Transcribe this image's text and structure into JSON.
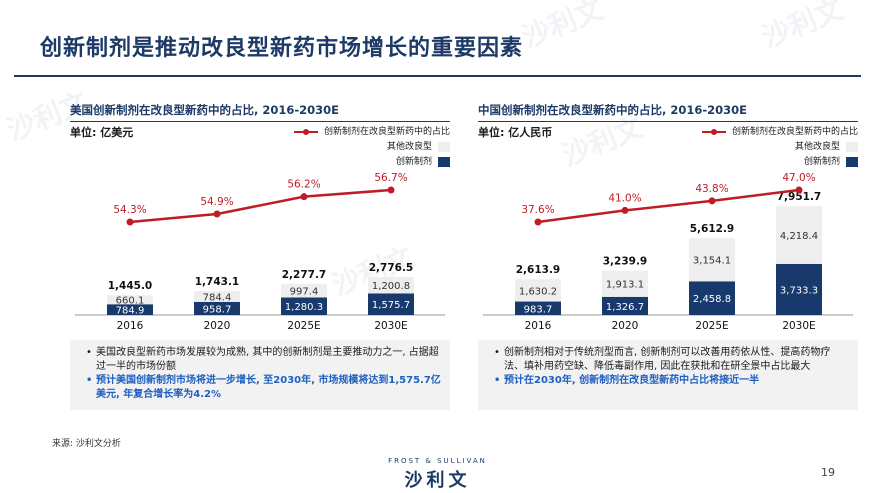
{
  "title": "创新制剂是推动改良型新药市场增长的重要因素",
  "legend": {
    "line": "创新制剂在改良型新药中的占比",
    "other": "其他改良型",
    "innovative": "创新制剂"
  },
  "colors": {
    "navy": "#17396b",
    "light": "#eeeeee",
    "line": "#c01c28",
    "accent_text": "#1f5fbf"
  },
  "left": {
    "heading": "美国创新制剂在改良型新药中的占比, 2016-2030E",
    "unit": "单位: 亿美元",
    "notes": [
      {
        "text": "美国改良型新药市场发展较为成熟, 其中的创新制剂是主要推动力之一, 占据超过一半的市场份额",
        "highlight": false
      },
      {
        "text": "预计美国创新制剂市场将进一步增长, 至2030年, 市场规模将达到1,575.7亿美元, 年复合增长率为4.2%",
        "highlight": true
      }
    ]
  },
  "right": {
    "heading": "中国创新制剂在改良型新药中的占比, 2016-2030E",
    "unit": "单位: 亿人民币",
    "notes": [
      {
        "text": "创新制剂相对于传统剂型而言, 创新制剂可以改善用药依从性、提高药物疗法、填补用药空缺、降低毒副作用, 因此在获批和在研全景中占比最大",
        "highlight": false
      },
      {
        "text": "预计在2030年, 创新制剂在改良型新药中占比将接近一半",
        "highlight": true
      }
    ]
  },
  "chart_data": [
    {
      "type": "bar",
      "stacked": true,
      "categories": [
        "2016",
        "2020",
        "2025E",
        "2030E"
      ],
      "series": [
        {
          "name": "创新制剂",
          "values": [
            784.9,
            958.7,
            1280.3,
            1575.7
          ],
          "labels": [
            "784.9",
            "958.7",
            "1,280.3",
            "1,575.7"
          ]
        },
        {
          "name": "其他改良型",
          "values": [
            660.1,
            784.4,
            997.4,
            1200.8
          ],
          "labels": [
            "660.1",
            "784.4",
            "997.4",
            "1,200.8"
          ]
        }
      ],
      "totals": [
        "1,445.0",
        "1,743.1",
        "2,277.7",
        "2,776.5"
      ],
      "line": {
        "name": "创新制剂在改良型新药中的占比",
        "values": [
          54.3,
          54.9,
          56.2,
          56.7
        ],
        "labels": [
          "54.3%",
          "54.9%",
          "56.2%",
          "56.7%"
        ]
      },
      "ymax": 8400
    },
    {
      "type": "bar",
      "stacked": true,
      "categories": [
        "2016",
        "2020",
        "2025E",
        "2030E"
      ],
      "series": [
        {
          "name": "创新制剂",
          "values": [
            983.7,
            1326.7,
            2458.8,
            3733.3
          ],
          "labels": [
            "983.7",
            "1,326.7",
            "2,458.8",
            "3,733.3"
          ]
        },
        {
          "name": "其他改良型",
          "values": [
            1630.2,
            1913.1,
            3154.1,
            4218.4
          ],
          "labels": [
            "1,630.2",
            "1,913.1",
            "3,154.1",
            "4,218.4"
          ]
        }
      ],
      "totals": [
        "2,613.9",
        "3,239.9",
        "5,612.9",
        "7,951.7"
      ],
      "line": {
        "name": "创新制剂在改良型新药中的占比",
        "values": [
          37.6,
          41.0,
          43.8,
          47.0
        ],
        "labels": [
          "37.6%",
          "41.0%",
          "43.8%",
          "47.0%"
        ]
      },
      "ymax": 8400
    }
  ],
  "source": "来源: 沙利文分析",
  "logo": {
    "top": "FROST & SULLIVAN",
    "main": "沙利文"
  },
  "page_number": "19"
}
